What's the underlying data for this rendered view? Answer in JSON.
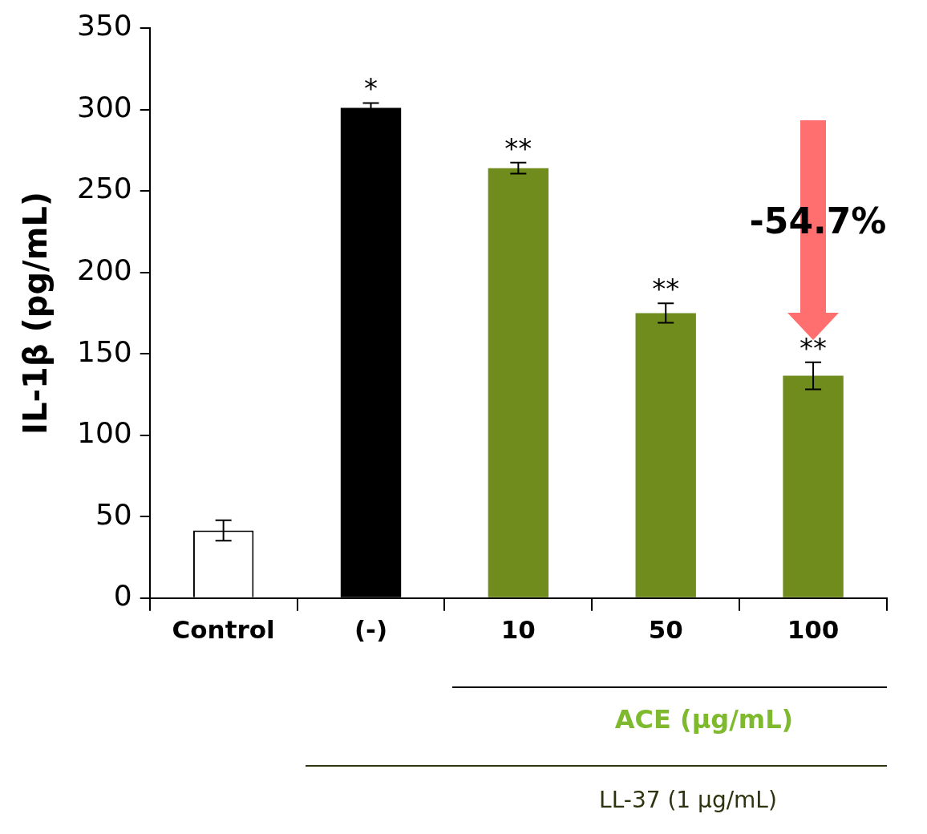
{
  "chart_data": {
    "type": "bar",
    "ylabel": "IL-1β (pg/mL)",
    "categories": [
      "Control",
      "(-)",
      "10",
      "50",
      "100"
    ],
    "values": [
      41.5,
      301,
      264,
      175,
      136.5
    ],
    "colors": [
      "#ffffff",
      "#000000",
      "#6f8c1c",
      "#6f8c1c",
      "#6f8c1c"
    ],
    "errors": [
      6.3,
      3,
      3.4,
      6,
      8.3
    ],
    "ylim": [
      0,
      350
    ],
    "yticks": [
      0,
      50,
      100,
      150,
      200,
      250,
      300,
      350
    ],
    "grid": false,
    "legend": false,
    "annotations": [
      {
        "text": "*",
        "x": "(-)",
        "y": 304
      },
      {
        "text": "**",
        "x": "10",
        "y": 267.4
      },
      {
        "text": "**",
        "x": "50",
        "y": 181
      },
      {
        "text": "**",
        "x": "100",
        "y": 144.8
      },
      "-54.7%",
      "ACE (μg/mL)",
      "LL-37 (1 μg/mL)"
    ]
  }
}
